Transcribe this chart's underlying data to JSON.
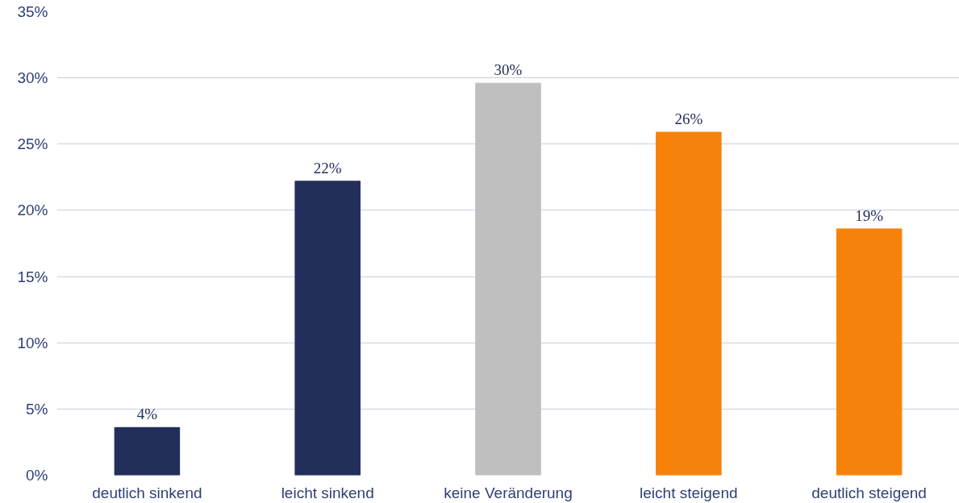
{
  "chart_data": {
    "type": "bar",
    "categories": [
      "deutlich sinkend",
      "leicht sinkend",
      "keine Veränderung",
      "leicht steigend",
      "deutlich steigend"
    ],
    "values": [
      3.6,
      22.2,
      29.6,
      25.9,
      18.6
    ],
    "colors": [
      "#232f5a",
      "#232f5a",
      "#bfbfbf",
      "#f7820b",
      "#f7820b"
    ],
    "value_labels": [
      "4%",
      "22%",
      "30%",
      "26%",
      "19%"
    ],
    "ylim": [
      0,
      35
    ],
    "yticks": [
      {
        "value": 0,
        "label": "0%"
      },
      {
        "value": 5,
        "label": "5%"
      },
      {
        "value": 10,
        "label": "10%"
      },
      {
        "value": 15,
        "label": "15%"
      },
      {
        "value": 20,
        "label": "20%"
      },
      {
        "value": 25,
        "label": "25%"
      },
      {
        "value": 30,
        "label": "30%"
      },
      {
        "value": 35,
        "label": "35%"
      }
    ],
    "grid": "y"
  }
}
